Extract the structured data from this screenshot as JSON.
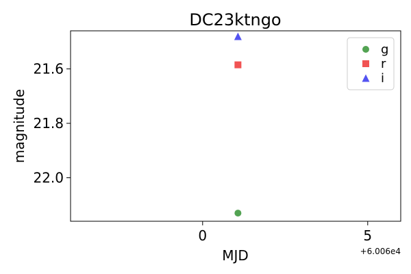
{
  "chart_data": {
    "type": "scatter",
    "title": "DC23ktngo",
    "xlabel": "MJD",
    "ylabel": "magnitude",
    "x_offset_label": "+6.006e4",
    "xlim": [
      -4.0,
      6.0
    ],
    "ylim": [
      22.16,
      21.46
    ],
    "y_inverted": true,
    "x_ticks": [
      0,
      5
    ],
    "y_ticks": [
      21.6,
      21.8,
      22.0
    ],
    "y_tick_labels": [
      "21.6",
      "21.8",
      "22.0"
    ],
    "grid": false,
    "legend": {
      "placement": "top-right",
      "entries": [
        {
          "label": "g",
          "marker": "circle",
          "color": "#4a9e4a"
        },
        {
          "label": "r",
          "marker": "square",
          "color": "#f04a4a"
        },
        {
          "label": "i",
          "marker": "triangle",
          "color": "#4a4af0"
        }
      ]
    },
    "series": [
      {
        "name": "g",
        "marker": "circle",
        "color": "#4a9e4a",
        "points": [
          {
            "x": 1.07,
            "y": 22.13
          }
        ]
      },
      {
        "name": "r",
        "marker": "square",
        "color": "#f04a4a",
        "points": [
          {
            "x": 1.07,
            "y": 21.585
          }
        ]
      },
      {
        "name": "i",
        "marker": "triangle",
        "color": "#4a4af0",
        "points": [
          {
            "x": 1.07,
            "y": 21.48
          }
        ]
      }
    ]
  }
}
